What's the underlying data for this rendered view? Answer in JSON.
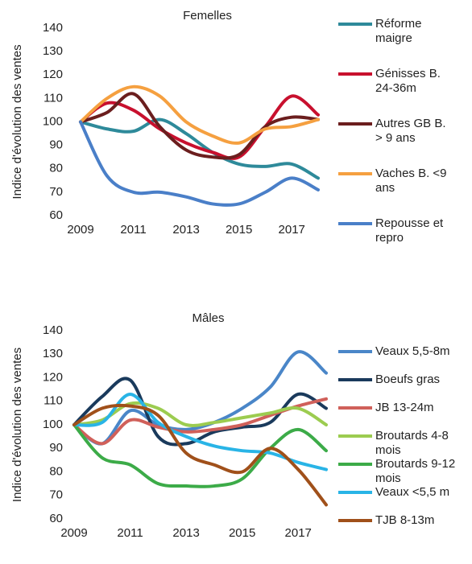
{
  "chart_data": [
    {
      "type": "line",
      "title": "Femelles",
      "y_label": "Indice d'évolution des ventes",
      "x": [
        2009,
        2010,
        2011,
        2012,
        2013,
        2014,
        2015,
        2016,
        2017,
        2018
      ],
      "xlim": [
        2009,
        2018
      ],
      "xticks": [
        2009,
        2011,
        2013,
        2015,
        2017
      ],
      "ylim": [
        60,
        140
      ],
      "yticks": [
        60,
        70,
        80,
        90,
        100,
        110,
        120,
        130,
        140
      ],
      "series": [
        {
          "name": "Réforme maigre",
          "color": "#2e8a9a",
          "values": [
            100,
            97,
            96,
            101,
            95,
            87,
            82,
            81,
            82,
            76
          ]
        },
        {
          "name": "Génisses B. 24-36m",
          "color": "#c8102e",
          "values": [
            100,
            108,
            105,
            97,
            91,
            87,
            85,
            98,
            111,
            103
          ]
        },
        {
          "name": "Autres GB B. > 9 ans",
          "color": "#6b1e1e",
          "values": [
            100,
            104,
            112,
            98,
            88,
            85,
            86,
            98,
            102,
            101
          ]
        },
        {
          "name": "Vaches B. <9 ans",
          "color": "#f5a040",
          "values": [
            100,
            110,
            115,
            111,
            100,
            94,
            91,
            97,
            98,
            101
          ]
        },
        {
          "name": "Repousse et repro",
          "color": "#4a7fc8",
          "values": [
            100,
            77,
            70,
            70,
            68,
            65,
            65,
            70,
            76,
            71
          ]
        }
      ]
    },
    {
      "type": "line",
      "title": "Mâles",
      "y_label": "Indice d'évolution des ventes",
      "x": [
        2009,
        2010,
        2011,
        2012,
        2013,
        2014,
        2015,
        2016,
        2017,
        2018
      ],
      "xlim": [
        2009,
        2018
      ],
      "xticks": [
        2009,
        2011,
        2013,
        2015,
        2017
      ],
      "ylim": [
        60,
        140
      ],
      "yticks": [
        60,
        70,
        80,
        90,
        100,
        110,
        120,
        130,
        140
      ],
      "series": [
        {
          "name": "Veaux 5,5-8m",
          "color": "#4a86c8",
          "values": [
            100,
            92,
            106,
            100,
            98,
            101,
            107,
            116,
            131,
            122
          ]
        },
        {
          "name": "Boeufs gras",
          "color": "#1a3a5c",
          "values": [
            100,
            112,
            119,
            95,
            92,
            97,
            99,
            101,
            113,
            107
          ]
        },
        {
          "name": "JB 13-24m",
          "color": "#d0605a",
          "values": [
            100,
            92,
            102,
            99,
            97,
            98,
            100,
            104,
            108,
            111
          ]
        },
        {
          "name": "Broutards 4-8 mois",
          "color": "#9ccc50",
          "values": [
            100,
            102,
            109,
            107,
            100,
            101,
            103,
            105,
            107,
            100
          ]
        },
        {
          "name": "Broutards 9-12 mois",
          "color": "#3cab48",
          "values": [
            100,
            86,
            83,
            75,
            74,
            74,
            77,
            90,
            98,
            89
          ]
        },
        {
          "name": "Veaux <5,5 m",
          "color": "#29b4e6",
          "values": [
            100,
            101,
            113,
            101,
            95,
            91,
            89,
            88,
            84,
            81
          ]
        },
        {
          "name": "TJB 8-13m",
          "color": "#a0501a",
          "values": [
            100,
            107,
            108,
            104,
            88,
            83,
            80,
            90,
            81,
            66
          ]
        }
      ]
    }
  ]
}
